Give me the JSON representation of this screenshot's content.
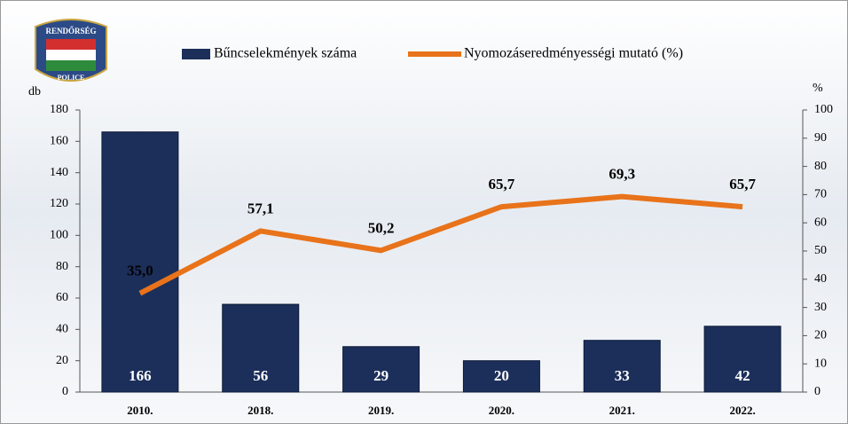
{
  "chart_data": {
    "type": "bar-line",
    "logo": {
      "top": "RENDŐRSÉG",
      "bottom": "POLICE"
    },
    "ylabel": "db",
    "y2label": "%",
    "categories": [
      "2010.",
      "2018.",
      "2019.",
      "2020.",
      "2021.",
      "2022."
    ],
    "series": [
      {
        "name": "Bűncselekmények száma",
        "type": "bar",
        "color": "#1c2f5a",
        "values": [
          166,
          56,
          29,
          20,
          33,
          42
        ]
      },
      {
        "name": "Nyomozáseredményességi mutató (%)",
        "type": "line",
        "axis": "y2",
        "color": "#e8731a",
        "values": [
          35.0,
          57.1,
          50.2,
          65.7,
          69.3,
          65.7
        ],
        "value_labels": [
          "35,0",
          "57,1",
          "50,2",
          "65,7",
          "69,3",
          "65,7"
        ]
      }
    ],
    "ylim": [
      0,
      180
    ],
    "yticks": [
      0,
      20,
      40,
      60,
      80,
      100,
      120,
      140,
      160,
      180
    ],
    "y2lim": [
      0,
      100
    ],
    "y2ticks": [
      0,
      10,
      20,
      30,
      40,
      50,
      60,
      70,
      80,
      90,
      100
    ]
  }
}
